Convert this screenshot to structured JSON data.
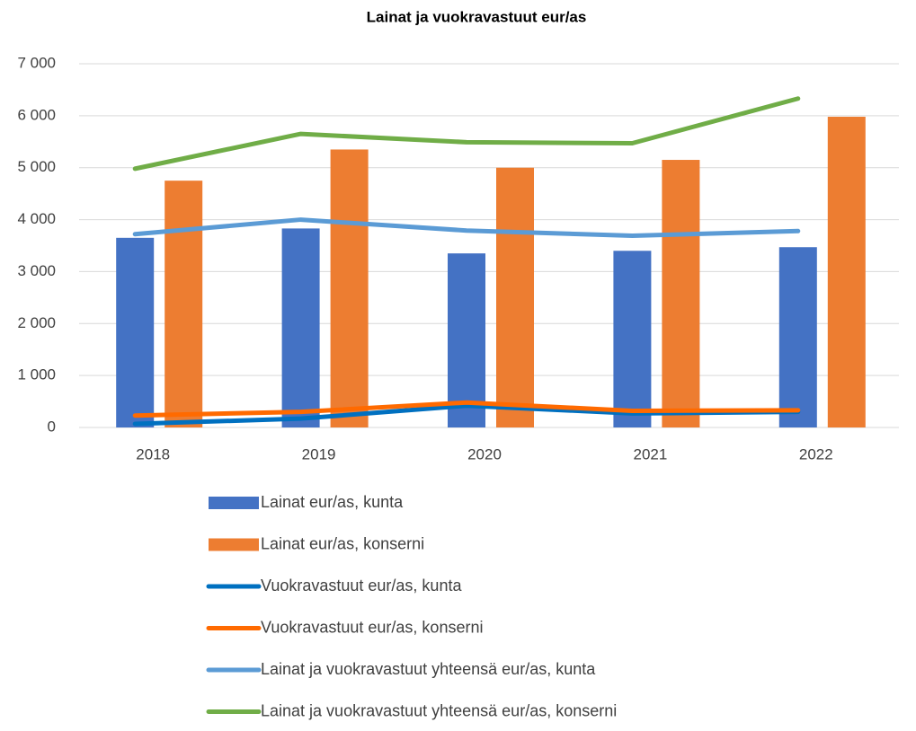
{
  "chart_data": {
    "type": "combo",
    "title": "Lainat ja vuokravastuut eur/as",
    "categories": [
      "2018",
      "2019",
      "2020",
      "2021",
      "2022"
    ],
    "series": [
      {
        "name": "Lainat eur/as, kunta",
        "type": "bar",
        "color": "#4472c4",
        "values": [
          3650,
          3830,
          3350,
          3400,
          3470
        ]
      },
      {
        "name": "Lainat eur/as, konserni",
        "type": "bar",
        "color": "#ed7d31",
        "values": [
          4750,
          5350,
          5000,
          5150,
          5980
        ]
      },
      {
        "name": "Vuokravastuut eur/as, kunta",
        "type": "line",
        "color": "#0070c0",
        "values": [
          70,
          170,
          420,
          270,
          300
        ]
      },
      {
        "name": "Vuokravastuut eur/as, konserni",
        "type": "line",
        "color": "#ff6a00",
        "values": [
          230,
          300,
          480,
          320,
          330
        ]
      },
      {
        "name": "Lainat ja vuokravastuut yhteensä eur/as, kunta",
        "type": "line",
        "color": "#5b9bd5",
        "values": [
          3720,
          4000,
          3790,
          3690,
          3780
        ]
      },
      {
        "name": "Lainat ja vuokravastuut yhteensä eur/as, konserni",
        "type": "line",
        "color": "#70ad47",
        "values": [
          4980,
          5650,
          5490,
          5470,
          6330
        ]
      }
    ],
    "ylim": [
      0,
      7000
    ],
    "yticks": [
      0,
      {
        "value": 1000,
        "label": "1 000"
      },
      {
        "value": 2000,
        "label": "2 000"
      },
      {
        "value": 3000,
        "label": "3 000"
      },
      {
        "value": 4000,
        "label": "4 000"
      },
      {
        "value": 5000,
        "label": "5 000"
      },
      {
        "value": 6000,
        "label": "6 000"
      },
      {
        "value": 7000,
        "label": "7 000"
      }
    ],
    "grid": true,
    "legend": "bottom"
  }
}
